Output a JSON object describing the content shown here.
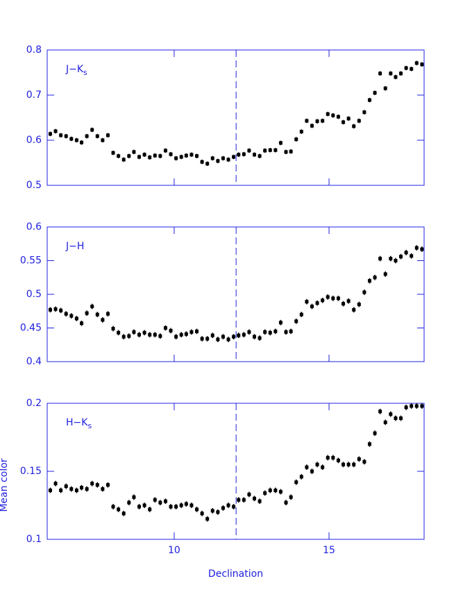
{
  "chart_data": [
    {
      "type": "scatter",
      "label": "J−K",
      "label_sub": "s",
      "axis_color": "#2020e0",
      "color": "#000000",
      "vline": 12,
      "xlim": [
        5.9,
        18.07
      ],
      "xticks": [
        10,
        15
      ],
      "ylim": [
        0.5,
        0.8
      ],
      "yticks": [
        0.5,
        0.6,
        0.7,
        0.8
      ],
      "yerr": 0.005,
      "x": [
        6.0,
        6.17,
        6.34,
        6.51,
        6.68,
        6.85,
        7.01,
        7.18,
        7.35,
        7.52,
        7.69,
        7.86,
        8.03,
        8.2,
        8.37,
        8.54,
        8.7,
        8.87,
        9.04,
        9.21,
        9.38,
        9.55,
        9.72,
        9.89,
        10.06,
        10.23,
        10.39,
        10.56,
        10.73,
        10.9,
        11.07,
        11.24,
        11.41,
        11.58,
        11.75,
        11.92,
        12.08,
        12.25,
        12.42,
        12.59,
        12.76,
        12.93,
        13.1,
        13.27,
        13.44,
        13.61,
        13.77,
        13.94,
        14.11,
        14.28,
        14.45,
        14.62,
        14.79,
        14.96,
        15.13,
        15.3,
        15.46,
        15.63,
        15.8,
        15.97,
        16.14,
        16.31,
        16.48,
        16.65,
        16.82,
        16.99,
        17.15,
        17.32,
        17.49,
        17.66,
        17.83,
        18.0
      ],
      "values": [
        0.614,
        0.62,
        0.611,
        0.609,
        0.603,
        0.6,
        0.595,
        0.609,
        0.623,
        0.609,
        0.6,
        0.611,
        0.572,
        0.565,
        0.557,
        0.565,
        0.574,
        0.563,
        0.568,
        0.562,
        0.566,
        0.565,
        0.577,
        0.569,
        0.56,
        0.563,
        0.566,
        0.568,
        0.565,
        0.552,
        0.548,
        0.56,
        0.554,
        0.56,
        0.557,
        0.563,
        0.568,
        0.569,
        0.577,
        0.568,
        0.565,
        0.577,
        0.578,
        0.578,
        0.594,
        0.574,
        0.575,
        0.602,
        0.619,
        0.643,
        0.632,
        0.642,
        0.643,
        0.658,
        0.655,
        0.652,
        0.64,
        0.648,
        0.631,
        0.643,
        0.662,
        0.689,
        0.705,
        0.748,
        0.715,
        0.748,
        0.74,
        0.748,
        0.76,
        0.758,
        0.771,
        0.768
      ]
    },
    {
      "type": "scatter",
      "label": "J−H",
      "axis_color": "#2020e0",
      "color": "#000000",
      "vline": 12,
      "xlim": [
        5.9,
        18.07
      ],
      "xticks": [
        10,
        15
      ],
      "ylim": [
        0.4,
        0.6
      ],
      "yticks": [
        0.4,
        0.45,
        0.5,
        0.55,
        0.6
      ],
      "yerr": 0.004,
      "x": [
        6.0,
        6.17,
        6.34,
        6.51,
        6.68,
        6.85,
        7.01,
        7.18,
        7.35,
        7.52,
        7.69,
        7.86,
        8.03,
        8.2,
        8.37,
        8.54,
        8.7,
        8.87,
        9.04,
        9.21,
        9.38,
        9.55,
        9.72,
        9.89,
        10.06,
        10.23,
        10.39,
        10.56,
        10.73,
        10.9,
        11.07,
        11.24,
        11.41,
        11.58,
        11.75,
        11.92,
        12.08,
        12.25,
        12.42,
        12.59,
        12.76,
        12.93,
        13.1,
        13.27,
        13.44,
        13.61,
        13.77,
        13.94,
        14.11,
        14.28,
        14.45,
        14.62,
        14.79,
        14.96,
        15.13,
        15.3,
        15.46,
        15.63,
        15.8,
        15.97,
        16.14,
        16.31,
        16.48,
        16.65,
        16.82,
        16.99,
        17.15,
        17.32,
        17.49,
        17.66,
        17.83,
        18.0
      ],
      "values": [
        0.477,
        0.478,
        0.476,
        0.471,
        0.468,
        0.464,
        0.457,
        0.472,
        0.482,
        0.47,
        0.462,
        0.471,
        0.449,
        0.443,
        0.437,
        0.438,
        0.444,
        0.44,
        0.443,
        0.44,
        0.44,
        0.438,
        0.45,
        0.446,
        0.437,
        0.44,
        0.441,
        0.444,
        0.445,
        0.434,
        0.434,
        0.439,
        0.433,
        0.437,
        0.433,
        0.437,
        0.439,
        0.44,
        0.444,
        0.437,
        0.435,
        0.444,
        0.443,
        0.445,
        0.458,
        0.444,
        0.445,
        0.46,
        0.47,
        0.489,
        0.482,
        0.487,
        0.491,
        0.496,
        0.494,
        0.494,
        0.486,
        0.49,
        0.477,
        0.485,
        0.503,
        0.52,
        0.525,
        0.553,
        0.53,
        0.553,
        0.55,
        0.556,
        0.562,
        0.557,
        0.569,
        0.567
      ]
    },
    {
      "type": "scatter",
      "label": "H−K",
      "label_sub": "s",
      "axis_color": "#2020e0",
      "color": "#000000",
      "vline": 12,
      "xlabel": "Declination",
      "ylabel": "Mean color",
      "xlim": [
        5.9,
        18.07
      ],
      "xticks": [
        10,
        15
      ],
      "ylim": [
        0.1,
        0.2
      ],
      "yticks": [
        0.1,
        0.15,
        0.2
      ],
      "yerr": 0.002,
      "x": [
        6.0,
        6.17,
        6.34,
        6.51,
        6.68,
        6.85,
        7.01,
        7.18,
        7.35,
        7.52,
        7.69,
        7.86,
        8.03,
        8.2,
        8.37,
        8.54,
        8.7,
        8.87,
        9.04,
        9.21,
        9.38,
        9.55,
        9.72,
        9.89,
        10.06,
        10.23,
        10.39,
        10.56,
        10.73,
        10.9,
        11.07,
        11.24,
        11.41,
        11.58,
        11.75,
        11.92,
        12.08,
        12.25,
        12.42,
        12.59,
        12.76,
        12.93,
        13.1,
        13.27,
        13.44,
        13.61,
        13.77,
        13.94,
        14.11,
        14.28,
        14.45,
        14.62,
        14.79,
        14.96,
        15.13,
        15.3,
        15.46,
        15.63,
        15.8,
        15.97,
        16.14,
        16.31,
        16.48,
        16.65,
        16.82,
        16.99,
        17.15,
        17.32,
        17.49,
        17.66,
        17.83,
        18.0
      ],
      "values": [
        0.136,
        0.141,
        0.136,
        0.139,
        0.137,
        0.136,
        0.138,
        0.137,
        0.141,
        0.14,
        0.137,
        0.14,
        0.124,
        0.122,
        0.119,
        0.127,
        0.131,
        0.124,
        0.125,
        0.122,
        0.129,
        0.127,
        0.128,
        0.124,
        0.124,
        0.125,
        0.126,
        0.125,
        0.122,
        0.119,
        0.115,
        0.121,
        0.12,
        0.123,
        0.125,
        0.124,
        0.129,
        0.129,
        0.133,
        0.13,
        0.128,
        0.134,
        0.136,
        0.136,
        0.135,
        0.127,
        0.131,
        0.142,
        0.146,
        0.153,
        0.15,
        0.155,
        0.153,
        0.16,
        0.16,
        0.158,
        0.155,
        0.155,
        0.155,
        0.159,
        0.157,
        0.17,
        0.178,
        0.194,
        0.186,
        0.192,
        0.189,
        0.189,
        0.197,
        0.198,
        0.198,
        0.198
      ]
    }
  ]
}
